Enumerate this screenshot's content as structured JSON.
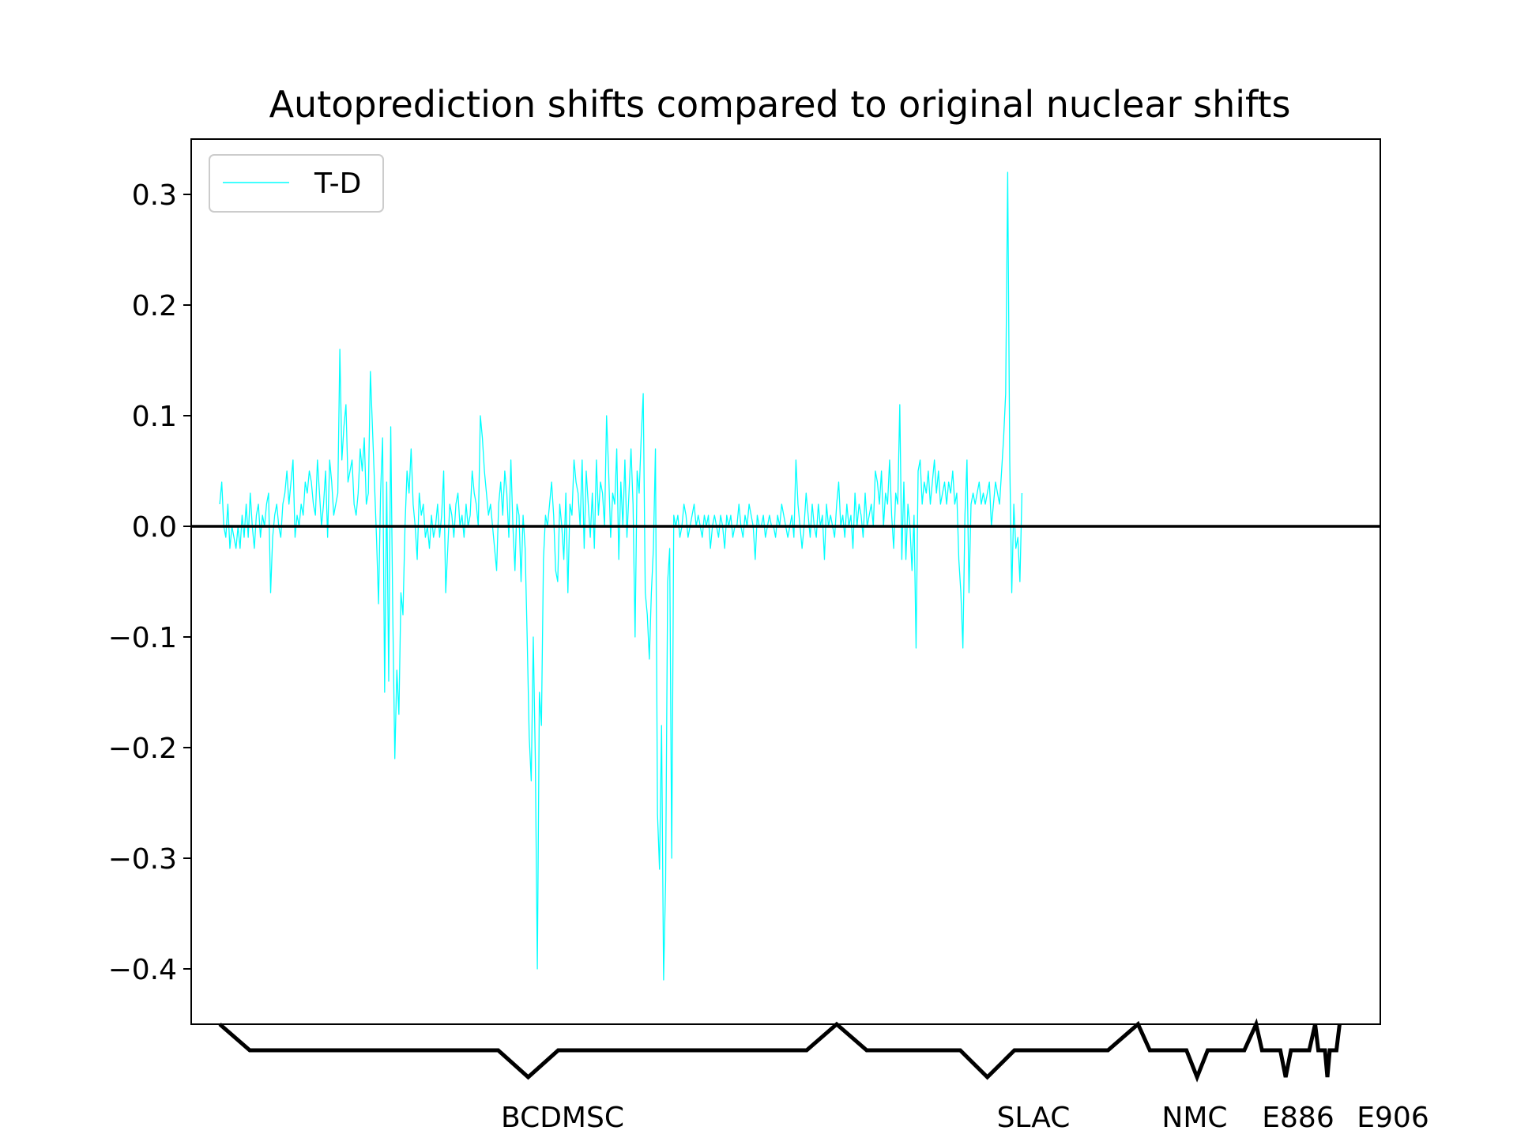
{
  "chart_data": {
    "type": "line",
    "title": "Autoprediction shifts compared to original nuclear shifts",
    "xlabel": "",
    "ylabel": "",
    "xlim": [
      -14,
      570
    ],
    "ylim": [
      -0.45,
      0.35
    ],
    "yticks": [
      0.3,
      0.2,
      0.1,
      0.0,
      -0.1,
      -0.2,
      -0.3,
      -0.4
    ],
    "ytick_labels": [
      "0.3",
      "0.2",
      "0.1",
      "0.0",
      "−0.1",
      "−0.2",
      "−0.3",
      "−0.4"
    ],
    "grid": false,
    "legend": {
      "position": "upper-left",
      "entries": [
        "T-D"
      ]
    },
    "reference_line": {
      "y": 0.0,
      "color": "#000000"
    },
    "series": [
      {
        "name": "T-D",
        "color": "#00ffff",
        "x_start": 0,
        "values": [
          0.02,
          0.04,
          0.0,
          -0.01,
          0.02,
          -0.02,
          0.0,
          -0.01,
          -0.02,
          0.0,
          -0.02,
          0.01,
          -0.01,
          0.02,
          -0.01,
          0.03,
          0.0,
          -0.02,
          0.01,
          0.02,
          -0.01,
          0.01,
          0.0,
          0.02,
          0.03,
          -0.06,
          -0.01,
          0.01,
          0.02,
          0.0,
          -0.01,
          0.02,
          0.03,
          0.05,
          0.02,
          0.04,
          0.06,
          -0.01,
          0.01,
          0.0,
          0.02,
          0.01,
          0.04,
          0.03,
          0.05,
          0.04,
          0.02,
          0.01,
          0.06,
          0.03,
          0.0,
          0.02,
          0.05,
          -0.01,
          0.06,
          0.04,
          0.01,
          0.02,
          0.03,
          0.16,
          0.06,
          0.09,
          0.11,
          0.04,
          0.05,
          0.06,
          0.02,
          0.01,
          0.03,
          0.07,
          0.05,
          0.08,
          0.02,
          0.03,
          0.14,
          0.09,
          0.04,
          -0.01,
          -0.07,
          0.03,
          0.08,
          -0.15,
          0.04,
          -0.14,
          0.09,
          -0.08,
          -0.21,
          -0.13,
          -0.17,
          -0.06,
          -0.08,
          0.0,
          0.05,
          0.03,
          0.07,
          0.02,
          0.0,
          -0.03,
          0.03,
          0.01,
          0.02,
          -0.01,
          0.0,
          -0.02,
          0.01,
          -0.01,
          0.0,
          0.02,
          -0.01,
          0.01,
          0.05,
          -0.06,
          -0.02,
          0.02,
          0.01,
          -0.01,
          0.02,
          0.03,
          0.0,
          0.01,
          -0.01,
          0.02,
          0.0,
          0.01,
          0.05,
          0.03,
          0.02,
          0.0,
          0.1,
          0.08,
          0.05,
          0.03,
          0.01,
          0.02,
          0.0,
          -0.02,
          -0.04,
          0.02,
          0.04,
          0.01,
          0.05,
          0.03,
          -0.01,
          0.06,
          0.0,
          -0.04,
          0.02,
          0.01,
          -0.05,
          0.01,
          -0.02,
          -0.1,
          -0.19,
          -0.23,
          -0.1,
          -0.21,
          -0.4,
          -0.15,
          -0.18,
          -0.03,
          0.01,
          0.0,
          0.02,
          0.04,
          0.01,
          -0.04,
          -0.05,
          0.02,
          0.0,
          -0.03,
          0.03,
          -0.06,
          0.02,
          0.01,
          0.06,
          0.04,
          0.03,
          0.0,
          0.06,
          -0.02,
          0.05,
          0.02,
          -0.01,
          0.03,
          -0.02,
          0.06,
          0.01,
          0.04,
          0.03,
          0.0,
          0.1,
          0.05,
          -0.01,
          0.03,
          0.02,
          0.07,
          -0.03,
          0.04,
          0.0,
          0.06,
          -0.01,
          0.03,
          0.07,
          0.02,
          -0.1,
          0.05,
          0.03,
          0.08,
          0.12,
          -0.06,
          -0.08,
          -0.12,
          -0.06,
          -0.02,
          0.07,
          -0.26,
          -0.31,
          -0.18,
          -0.41,
          -0.32,
          -0.05,
          -0.02,
          -0.3,
          0.01,
          0.0,
          0.01,
          -0.01,
          0.0,
          0.02,
          0.01,
          -0.01,
          0.0,
          0.01,
          0.02,
          0.0,
          0.01,
          0.0,
          -0.01,
          0.01,
          0.0,
          0.01,
          -0.02,
          0.0,
          0.01,
          0.0,
          -0.01,
          0.01,
          0.0,
          -0.02,
          0.01,
          0.0,
          0.01,
          -0.01,
          0.0,
          0.0,
          0.02,
          0.0,
          -0.01,
          0.01,
          0.0,
          0.02,
          0.01,
          0.0,
          -0.03,
          0.01,
          0.0,
          0.0,
          0.01,
          -0.01,
          0.0,
          0.01,
          0.0,
          0.0,
          -0.01,
          0.01,
          0.0,
          0.02,
          0.01,
          0.0,
          -0.01,
          0.0,
          0.01,
          -0.01,
          0.06,
          0.02,
          0.0,
          -0.02,
          0.0,
          0.03,
          0.01,
          -0.01,
          0.02,
          0.0,
          -0.01,
          0.02,
          0.0,
          0.01,
          -0.03,
          0.02,
          0.0,
          0.01,
          0.0,
          -0.01,
          0.02,
          0.04,
          0.0,
          0.01,
          -0.01,
          0.02,
          0.0,
          0.01,
          -0.02,
          0.03,
          0.0,
          0.02,
          0.01,
          -0.01,
          0.03,
          0.0,
          0.01,
          0.02,
          0.0,
          0.05,
          0.04,
          0.02,
          0.05,
          0.0,
          0.03,
          0.02,
          0.06,
          0.01,
          -0.02,
          0.03,
          0.02,
          0.11,
          -0.03,
          0.04,
          -0.03,
          0.02,
          0.0,
          -0.04,
          0.01,
          -0.11,
          0.05,
          0.06,
          0.02,
          0.04,
          0.03,
          0.05,
          0.02,
          0.04,
          0.06,
          0.03,
          0.05,
          0.02,
          0.03,
          0.04,
          0.02,
          0.04,
          0.03,
          0.05,
          0.02,
          0.03,
          -0.03,
          -0.06,
          -0.11,
          0.01,
          0.06,
          -0.06,
          0.02,
          0.03,
          0.02,
          0.03,
          0.04,
          0.02,
          0.03,
          0.02,
          0.03,
          0.04,
          0.0,
          0.02,
          0.04,
          0.03,
          0.02,
          0.05,
          0.08,
          0.12,
          0.32,
          0.06,
          -0.06,
          0.02,
          -0.02,
          -0.01,
          -0.05,
          0.03
        ]
      }
    ],
    "experiment_groups": [
      {
        "label": "BCDMSC",
        "start": 0,
        "end": 303
      },
      {
        "label": "SLAC",
        "start": 303,
        "end": 451
      },
      {
        "label": "NMC",
        "start": 451,
        "end": 509
      },
      {
        "label": "E886",
        "start": 509,
        "end": 538
      },
      {
        "label": "E906",
        "start": 538,
        "end": 550
      }
    ]
  }
}
